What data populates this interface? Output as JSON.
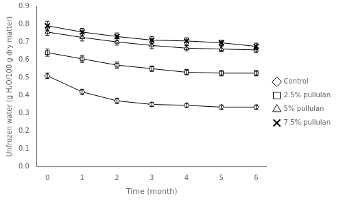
{
  "chart_data": {
    "type": "line",
    "x": [
      0,
      1,
      2,
      3,
      4,
      5,
      6
    ],
    "series": [
      {
        "name": "Control",
        "color": "#000000",
        "marker": "diamond",
        "values": [
          0.51,
          0.42,
          0.37,
          0.35,
          0.345,
          0.335,
          0.335
        ],
        "errors": [
          0.015,
          0.015,
          0.015,
          0.012,
          0.012,
          0.012,
          0.012
        ]
      },
      {
        "name": "2.5% pullulan",
        "color": "#000000",
        "marker": "square",
        "values": [
          0.64,
          0.605,
          0.57,
          0.55,
          0.53,
          0.525,
          0.525
        ],
        "errors": [
          0.02,
          0.02,
          0.018,
          0.015,
          0.015,
          0.015,
          0.015
        ]
      },
      {
        "name": "5% pullulan",
        "color": "#000000",
        "marker": "triangle",
        "values": [
          0.755,
          0.725,
          0.7,
          0.68,
          0.665,
          0.66,
          0.655
        ],
        "errors": [
          0.018,
          0.02,
          0.018,
          0.018,
          0.015,
          0.015,
          0.015
        ]
      },
      {
        "name": "7.5% pullulan",
        "color": "#000000",
        "marker": "x",
        "values": [
          0.79,
          0.755,
          0.73,
          0.71,
          0.705,
          0.695,
          0.675
        ],
        "errors": [
          0.025,
          0.02,
          0.02,
          0.02,
          0.018,
          0.015,
          0.018
        ]
      }
    ],
    "xlabel": "Time (month)",
    "ylabel": "Unfrozen water (g H₂O/100 g dry matter)",
    "xlim": [
      -0.3,
      6.3
    ],
    "xticks": [
      0,
      1,
      2,
      3,
      4,
      5,
      6
    ],
    "ylim": [
      0,
      0.9
    ],
    "yticks": [
      {
        "value": 0,
        "label": "0.0"
      },
      0.1,
      0.2,
      0.3,
      0.4,
      0.5,
      0.6,
      0.7,
      0.8,
      0.9
    ],
    "grid": false,
    "legend": "right"
  }
}
